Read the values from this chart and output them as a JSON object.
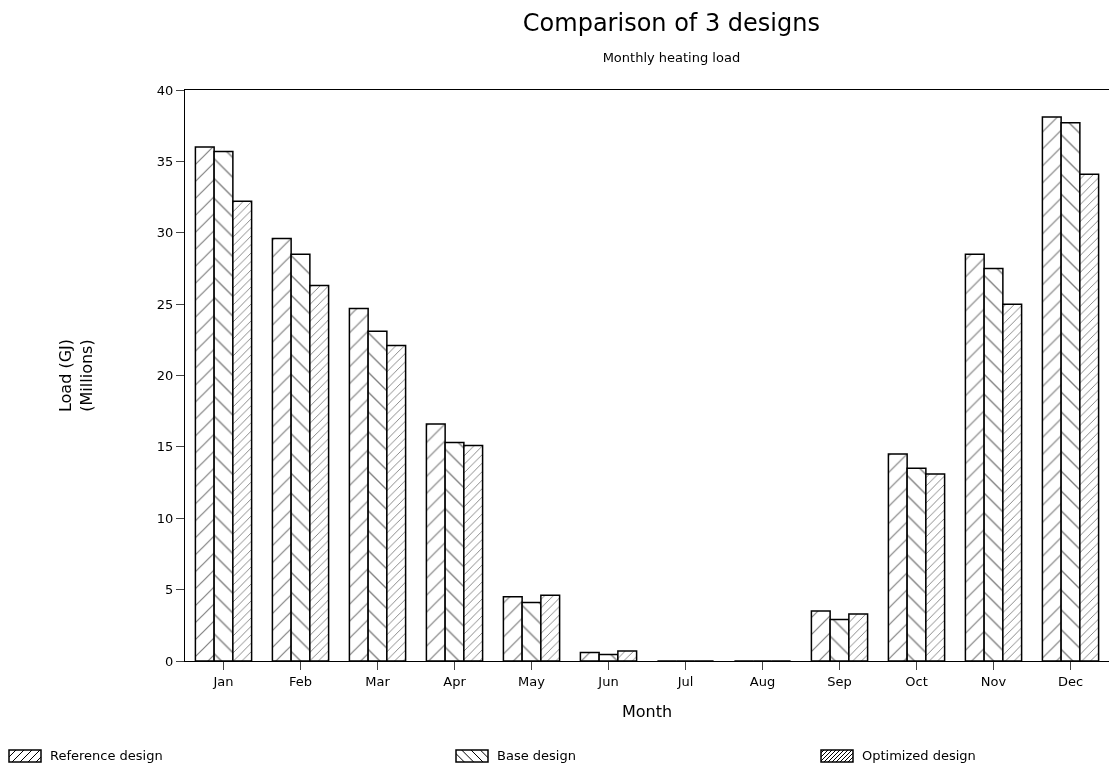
{
  "chart_data": {
    "type": "bar",
    "title": "Comparison of 3 designs",
    "subtitle": "Monthly heating load",
    "xlabel": "Month",
    "ylabel": "Load (GJ)\n(Millions)",
    "categories": [
      "Jan",
      "Feb",
      "Mar",
      "Apr",
      "May",
      "Jun",
      "Jul",
      "Aug",
      "Sep",
      "Oct",
      "Nov",
      "Dec"
    ],
    "series": [
      {
        "name": "Reference design",
        "color": "#000000",
        "values": [
          36.0,
          29.6,
          24.7,
          16.6,
          4.5,
          0.6,
          0,
          0,
          3.5,
          14.5,
          28.5,
          38.1
        ]
      },
      {
        "name": "Base design",
        "color": "#000000",
        "values": [
          35.7,
          28.5,
          23.1,
          15.3,
          4.1,
          0.45,
          0,
          0,
          2.9,
          13.5,
          27.5,
          37.7
        ]
      },
      {
        "name": "Optimized design",
        "color": "#000000",
        "values": [
          32.2,
          26.3,
          22.1,
          15.1,
          4.6,
          0.7,
          0,
          0,
          3.3,
          13.1,
          25.0,
          34.1
        ]
      }
    ],
    "ylim": [
      0,
      40
    ],
    "yticks": [
      0,
      5,
      10,
      15,
      20,
      25,
      30,
      35,
      40
    ],
    "grid": false,
    "legend": "bottom"
  }
}
